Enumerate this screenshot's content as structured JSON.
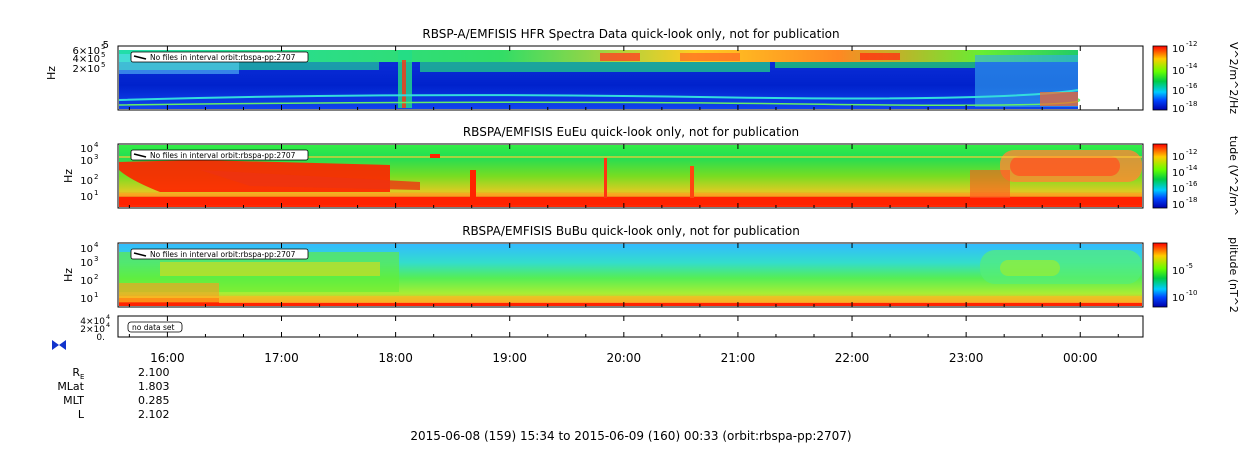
{
  "chart_data": [
    {
      "type": "heatmap",
      "title": "RBSP-A/EMFISIS  HFR Spectra Data quick-look only, not for publication",
      "ylabel": "Hz",
      "y_ticks": [
        {
          "base": "6×10",
          "exp": "5"
        },
        {
          "base": "4×10",
          "exp": "5"
        },
        {
          "base": "2×10",
          "exp": "5"
        }
      ],
      "y_top_label": "5",
      "notice": "No files in interval orbit:rbspa-pp:2707",
      "colorbar": {
        "label": "V^2/m^2/Hz",
        "ticks": [
          {
            "base": "10",
            "exp": "-12"
          },
          {
            "base": "10",
            "exp": "-14"
          },
          {
            "base": "10",
            "exp": "-16"
          },
          {
            "base": "10",
            "exp": "-18"
          }
        ]
      },
      "colors": {
        "low": "#0000cc",
        "mid": "#00cc66",
        "high": "#ff2200"
      }
    },
    {
      "type": "heatmap",
      "title": "RBSPA/EMFISIS  EuEu quick-look only, not for publication",
      "ylabel": "Hz",
      "y_ticks": [
        {
          "base": "10",
          "exp": "4"
        },
        {
          "base": "10",
          "exp": "3"
        },
        {
          "base": "10",
          "exp": "2"
        },
        {
          "base": "10",
          "exp": "1"
        }
      ],
      "notice": "No files in interval orbit:rbspa-pp:2707",
      "colorbar": {
        "label": "tude (V^2/m^",
        "ticks": [
          {
            "base": "10",
            "exp": "-12"
          },
          {
            "base": "10",
            "exp": "-14"
          },
          {
            "base": "10",
            "exp": "-16"
          },
          {
            "base": "10",
            "exp": "-18"
          }
        ]
      }
    },
    {
      "type": "heatmap",
      "title": "RBSPA/EMFISIS  BuBu quick-look only, not for publication",
      "ylabel": "Hz",
      "y_ticks": [
        {
          "base": "10",
          "exp": "4"
        },
        {
          "base": "10",
          "exp": "3"
        },
        {
          "base": "10",
          "exp": "2"
        },
        {
          "base": "10",
          "exp": "1"
        }
      ],
      "notice": "No files in interval orbit:rbspa-pp:2707",
      "colorbar": {
        "label": "plitude (nT^2",
        "ticks": [
          {
            "base": "10",
            "exp": "-5"
          },
          {
            "base": "10",
            "exp": "-10"
          }
        ]
      }
    },
    {
      "type": "line",
      "title": "",
      "y_ticks": [
        {
          "base": "4×10",
          "exp": "4"
        },
        {
          "base": "2×10",
          "exp": "4"
        },
        {
          "base": "0.",
          "exp": ""
        }
      ],
      "notice": "no data set"
    }
  ],
  "x_axis": {
    "tick_labels": [
      "16:00",
      "17:00",
      "18:00",
      "19:00",
      "20:00",
      "21:00",
      "22:00",
      "23:00",
      "00:00"
    ],
    "start_hour": 15.567,
    "end_hour": 24.55
  },
  "ephemeris": [
    {
      "label": "R",
      "sub": "E",
      "value": "2.100"
    },
    {
      "label": "MLat",
      "sub": "",
      "value": "1.803"
    },
    {
      "label": "MLT",
      "sub": "",
      "value": "0.285"
    },
    {
      "label": "L",
      "sub": "",
      "value": "2.102"
    }
  ],
  "footer": "2015-06-08 (159) 15:34 to 2015-06-09 (160) 00:33 (orbit:rbspa-pp:2707)"
}
